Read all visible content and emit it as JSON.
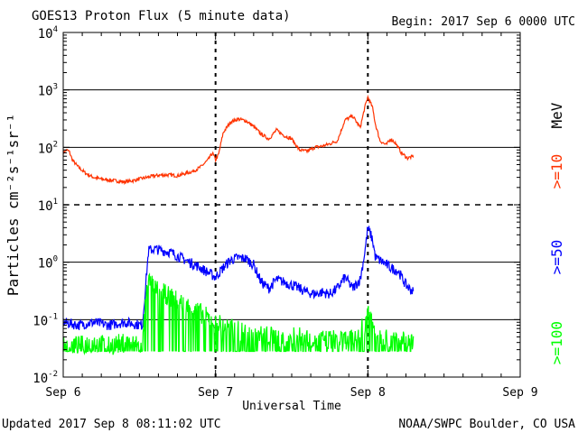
{
  "header": {
    "title": "GOES13 Proton Flux (5 minute data)",
    "begin": "Begin: 2017 Sep 6 0000 UTC"
  },
  "footer": {
    "updated": "Updated 2017 Sep  8 08:11:02 UTC",
    "credit": "NOAA/SWPC Boulder, CO USA"
  },
  "colors": {
    "ge10": "#ff3300",
    "ge50": "#0000ff",
    "ge100": "#00ff00",
    "axis": "#000000",
    "background": "#ffffff"
  },
  "chart_data": {
    "type": "line",
    "title": "GOES13 Proton Flux (5 minute data)",
    "xlabel": "Universal Time",
    "ylabel": "Particles cm⁻²s⁻¹sr⁻¹",
    "yscale": "log",
    "ylim": [
      0.01,
      10000
    ],
    "xlim": [
      0,
      3
    ],
    "xunit": "days since 2017 Sep 6 0000 UTC",
    "xticks": [
      {
        "x": 0,
        "label": "Sep 6"
      },
      {
        "x": 1,
        "label": "Sep 7"
      },
      {
        "x": 2,
        "label": "Sep 8"
      },
      {
        "x": 3,
        "label": "Sep 9"
      }
    ],
    "yticks": [
      {
        "exp": -2,
        "label": "-2"
      },
      {
        "exp": -1,
        "label": "-1"
      },
      {
        "exp": 0,
        "label": "0"
      },
      {
        "exp": 1,
        "label": "1"
      },
      {
        "exp": 2,
        "label": "2"
      },
      {
        "exp": 3,
        "label": "3"
      },
      {
        "exp": 4,
        "label": "4"
      }
    ],
    "grid_major": [
      0.1,
      1,
      100,
      1000
    ],
    "grid_dashed_y": [
      10
    ],
    "grid_dashed_x": [
      1,
      2
    ],
    "series": [
      {
        "name": ">=10 MeV",
        "label": ">=10",
        "unit": "MeV",
        "color": "#ff3300",
        "points": [
          [
            0.0,
            80
          ],
          [
            0.02,
            90
          ],
          [
            0.04,
            85
          ],
          [
            0.06,
            60
          ],
          [
            0.1,
            45
          ],
          [
            0.15,
            35
          ],
          [
            0.2,
            30
          ],
          [
            0.25,
            28
          ],
          [
            0.3,
            27
          ],
          [
            0.35,
            26
          ],
          [
            0.4,
            25
          ],
          [
            0.45,
            26
          ],
          [
            0.5,
            28
          ],
          [
            0.55,
            30
          ],
          [
            0.6,
            32
          ],
          [
            0.65,
            33
          ],
          [
            0.7,
            33
          ],
          [
            0.75,
            32
          ],
          [
            0.8,
            35
          ],
          [
            0.85,
            38
          ],
          [
            0.9,
            45
          ],
          [
            0.95,
            60
          ],
          [
            0.98,
            80
          ],
          [
            1.0,
            60
          ],
          [
            1.02,
            75
          ],
          [
            1.05,
            180
          ],
          [
            1.1,
            280
          ],
          [
            1.15,
            310
          ],
          [
            1.2,
            290
          ],
          [
            1.25,
            230
          ],
          [
            1.3,
            170
          ],
          [
            1.35,
            140
          ],
          [
            1.4,
            200
          ],
          [
            1.45,
            160
          ],
          [
            1.5,
            140
          ],
          [
            1.55,
            90
          ],
          [
            1.6,
            85
          ],
          [
            1.65,
            100
          ],
          [
            1.7,
            105
          ],
          [
            1.75,
            115
          ],
          [
            1.8,
            130
          ],
          [
            1.85,
            300
          ],
          [
            1.9,
            350
          ],
          [
            1.95,
            220
          ],
          [
            1.98,
            500
          ],
          [
            2.0,
            750
          ],
          [
            2.03,
            500
          ],
          [
            2.05,
            250
          ],
          [
            2.08,
            130
          ],
          [
            2.12,
            110
          ],
          [
            2.15,
            140
          ],
          [
            2.18,
            120
          ],
          [
            2.22,
            80
          ],
          [
            2.26,
            65
          ],
          [
            2.3,
            70
          ]
        ]
      },
      {
        "name": ">=50 MeV",
        "label": ">=50",
        "unit": "",
        "color": "#0000ff",
        "points": [
          [
            0.0,
            0.09
          ],
          [
            0.1,
            0.08
          ],
          [
            0.2,
            0.09
          ],
          [
            0.3,
            0.08
          ],
          [
            0.4,
            0.09
          ],
          [
            0.52,
            0.08
          ],
          [
            0.56,
            1.6
          ],
          [
            0.6,
            1.7
          ],
          [
            0.7,
            1.5
          ],
          [
            0.8,
            1.1
          ],
          [
            0.9,
            0.8
          ],
          [
            1.0,
            0.55
          ],
          [
            1.05,
            0.8
          ],
          [
            1.1,
            1.1
          ],
          [
            1.15,
            1.2
          ],
          [
            1.2,
            1.15
          ],
          [
            1.25,
            0.9
          ],
          [
            1.3,
            0.45
          ],
          [
            1.35,
            0.35
          ],
          [
            1.4,
            0.5
          ],
          [
            1.45,
            0.45
          ],
          [
            1.5,
            0.4
          ],
          [
            1.55,
            0.35
          ],
          [
            1.6,
            0.3
          ],
          [
            1.65,
            0.28
          ],
          [
            1.7,
            0.3
          ],
          [
            1.75,
            0.28
          ],
          [
            1.8,
            0.35
          ],
          [
            1.85,
            0.55
          ],
          [
            1.9,
            0.35
          ],
          [
            1.95,
            0.5
          ],
          [
            1.98,
            1.5
          ],
          [
            2.0,
            4.0
          ],
          [
            2.03,
            2.5
          ],
          [
            2.05,
            1.2
          ],
          [
            2.1,
            1.0
          ],
          [
            2.15,
            0.8
          ],
          [
            2.2,
            0.7
          ],
          [
            2.25,
            0.4
          ],
          [
            2.3,
            0.3
          ]
        ]
      },
      {
        "name": ">=100 MeV",
        "label": ">=100",
        "unit": "",
        "color": "#00ff00",
        "points": [
          [
            0.0,
            0.04
          ],
          [
            0.1,
            0.035
          ],
          [
            0.2,
            0.04
          ],
          [
            0.3,
            0.035
          ],
          [
            0.4,
            0.04
          ],
          [
            0.52,
            0.035
          ],
          [
            0.55,
            0.5
          ],
          [
            0.6,
            0.35
          ],
          [
            0.7,
            0.25
          ],
          [
            0.8,
            0.18
          ],
          [
            0.9,
            0.13
          ],
          [
            1.0,
            0.09
          ],
          [
            1.1,
            0.07
          ],
          [
            1.2,
            0.06
          ],
          [
            1.3,
            0.055
          ],
          [
            1.4,
            0.05
          ],
          [
            1.5,
            0.05
          ],
          [
            1.6,
            0.05
          ],
          [
            1.7,
            0.045
          ],
          [
            1.8,
            0.045
          ],
          [
            1.9,
            0.045
          ],
          [
            1.98,
            0.08
          ],
          [
            2.0,
            0.16
          ],
          [
            2.05,
            0.06
          ],
          [
            2.1,
            0.05
          ],
          [
            2.2,
            0.045
          ],
          [
            2.3,
            0.04
          ]
        ],
        "floor": 0.028
      }
    ]
  }
}
